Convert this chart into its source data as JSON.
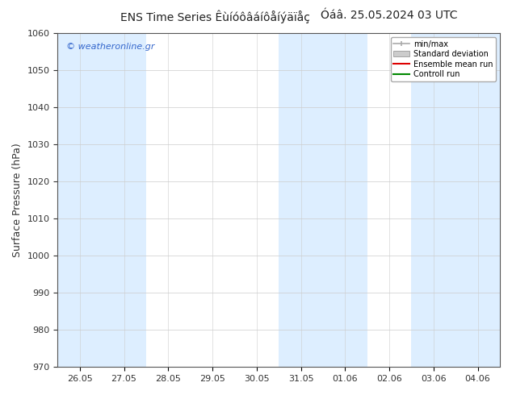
{
  "title_left": "ENS Time Series Êùíóôâáíôåíýäïåç",
  "title_right": "Óáâ. 25.05.2024 03 UTC",
  "ylabel": "Surface Pressure (hPa)",
  "watermark": "© weatheronline.gr",
  "fig_bg_color": "#ffffff",
  "plot_bg_color": "#ffffff",
  "ylim": [
    970,
    1060
  ],
  "yticks": [
    970,
    980,
    990,
    1000,
    1010,
    1020,
    1030,
    1040,
    1050,
    1060
  ],
  "xtick_labels": [
    "26.05",
    "27.05",
    "28.05",
    "29.05",
    "30.05",
    "31.05",
    "01.06",
    "02.06",
    "03.06",
    "04.06"
  ],
  "legend_labels": [
    "min/max",
    "Standard deviation",
    "Ensemble mean run",
    "Controll run"
  ],
  "stripe_indices": [
    0,
    1,
    5,
    6,
    8,
    9
  ],
  "stripe_color": "#ddeeff",
  "title_fontsize": 10,
  "tick_fontsize": 8,
  "ylabel_fontsize": 9,
  "watermark_color": "#3366cc",
  "grid_color": "#cccccc",
  "legend_minmax_color": "#aaaaaa",
  "legend_std_color": "#cccccc",
  "legend_ens_color": "#dd0000",
  "legend_ctrl_color": "#008800"
}
